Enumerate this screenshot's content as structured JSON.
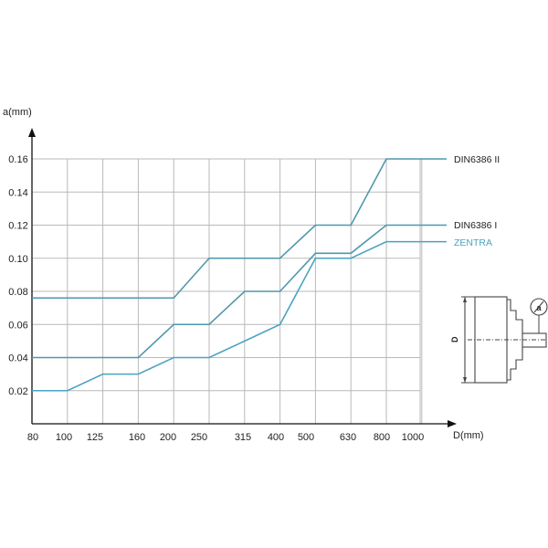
{
  "chart_data": {
    "type": "line",
    "x_label": "D(mm)",
    "y_label": "a(mm)",
    "x_ticks": [
      "80",
      "100",
      "125",
      "160",
      "200",
      "250",
      "315",
      "400",
      "500",
      "630",
      "800",
      "1000"
    ],
    "y_ticks": [
      "0.02",
      "0.04",
      "0.06",
      "0.08",
      "0.10",
      "0.12",
      "0.14",
      "0.16"
    ],
    "ylim": [
      0,
      0.17
    ],
    "grid": true,
    "series": [
      {
        "name": "DIN6386 II",
        "color": "#4e97ad",
        "points": [
          [
            80,
            0.076
          ],
          [
            200,
            0.076
          ],
          [
            250,
            0.1
          ],
          [
            400,
            0.1
          ],
          [
            500,
            0.12
          ],
          [
            630,
            0.12
          ],
          [
            800,
            0.16
          ],
          [
            1000,
            0.16
          ],
          [
            1250,
            0.16
          ]
        ]
      },
      {
        "name": "DIN6386 I",
        "color": "#4e97ad",
        "points": [
          [
            80,
            0.04
          ],
          [
            160,
            0.04
          ],
          [
            200,
            0.06
          ],
          [
            250,
            0.06
          ],
          [
            315,
            0.08
          ],
          [
            400,
            0.08
          ],
          [
            500,
            0.103
          ],
          [
            630,
            0.103
          ],
          [
            800,
            0.12
          ],
          [
            1000,
            0.12
          ],
          [
            1250,
            0.12
          ]
        ]
      },
      {
        "name": "ZENTRA",
        "color": "#4aa3c2",
        "points": [
          [
            80,
            0.02
          ],
          [
            100,
            0.02
          ],
          [
            125,
            0.03
          ],
          [
            160,
            0.03
          ],
          [
            200,
            0.04
          ],
          [
            250,
            0.04
          ],
          [
            400,
            0.06
          ],
          [
            500,
            0.1
          ],
          [
            630,
            0.1
          ],
          [
            800,
            0.11
          ],
          [
            1000,
            0.11
          ],
          [
            1250,
            0.11
          ]
        ]
      }
    ]
  },
  "diagram": {
    "dimension_label": "D",
    "gauge_label": "a"
  }
}
